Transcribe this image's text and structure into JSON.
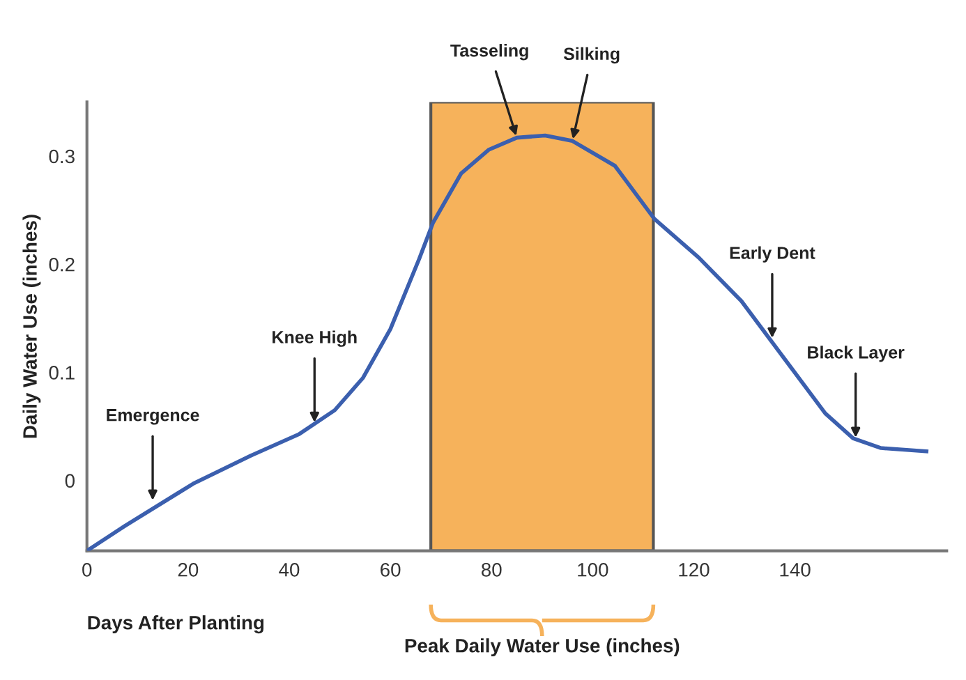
{
  "chart_data": {
    "type": "line",
    "xlabel": "Days After Planting",
    "ylabel": "Daily Water Use (inches)",
    "x": [
      0,
      7.5,
      21,
      32.4,
      42,
      49,
      54.6,
      60,
      65.7,
      68.4,
      74,
      79.5,
      85,
      90.6,
      96,
      104.4,
      112.2,
      121,
      129.4,
      137.7,
      146,
      151.5,
      157,
      166
    ],
    "series": [
      {
        "color": "#3b5fae",
        "values": [
          -0.065,
          -0.042,
          -0.003,
          0.023,
          0.043,
          0.065,
          0.095,
          0.14,
          0.205,
          0.238,
          0.284,
          0.306,
          0.317,
          0.319,
          0.314,
          0.291,
          0.242,
          0.206,
          0.166,
          0.114,
          0.062,
          0.039,
          0.03,
          0.027
        ]
      }
    ],
    "xlim": [
      0,
      170
    ],
    "ylim": [
      -0.065,
      0.35
    ],
    "xticks": [
      0,
      20,
      40,
      60,
      80,
      100,
      120,
      140
    ],
    "yticks": [
      0,
      0.1,
      0.2,
      0.3
    ],
    "bands": [
      {
        "axis": "x",
        "from": 68,
        "to": 112,
        "color": "#f6b25b"
      }
    ],
    "annotations": [
      {
        "text": "Emergence",
        "x": 13,
        "y": -0.02
      },
      {
        "text": "Knee High",
        "x": 45,
        "y": 0.052
      },
      {
        "text": "Tasseling",
        "x": 85,
        "y": 0.317
      },
      {
        "text": "Silking",
        "x": 96,
        "y": 0.314
      },
      {
        "text": "Early Dent",
        "x": 135.5,
        "y": 0.13
      },
      {
        "text": "Black Layer",
        "x": 152,
        "y": 0.038
      },
      "Peak Daily Water Use (inches)"
    ],
    "grid": false,
    "legend": false,
    "marker": "none",
    "line_style": "solid"
  }
}
